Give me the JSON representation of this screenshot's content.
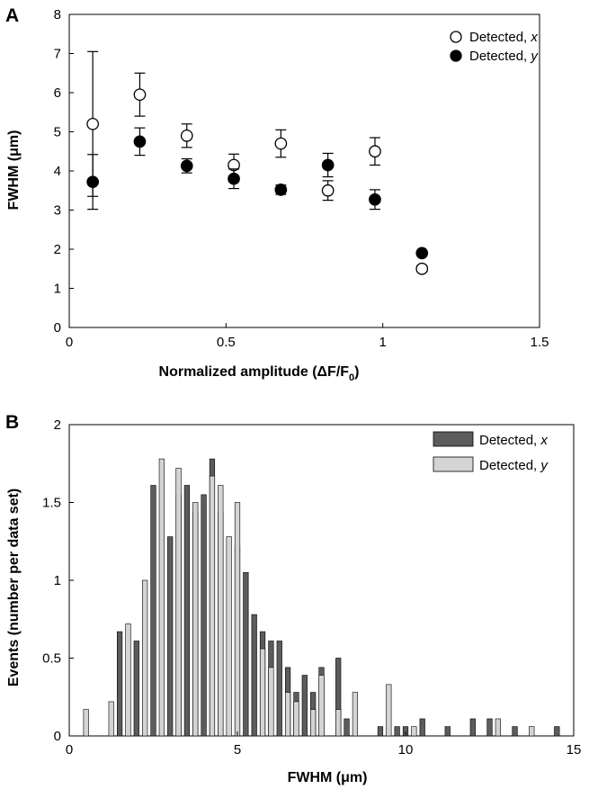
{
  "chart_data": [
    {
      "panel": "A",
      "type": "scatter",
      "xlabel": "Normalized amplitude (ΔF/F0)",
      "xlabel_main": "Normalized amplitude (ΔF/F",
      "xlabel_sub": "0",
      "xlabel_close": ")",
      "ylabel": "FWHM (μm)",
      "xlim": [
        0,
        1.5
      ],
      "ylim": [
        0,
        8
      ],
      "xticks": [
        "0",
        "0.5",
        "1",
        "1.5"
      ],
      "yticks": [
        "0",
        "1",
        "2",
        "3",
        "4",
        "5",
        "6",
        "7",
        "8"
      ],
      "grid": false,
      "legend_position": "top-right",
      "series": [
        {
          "name": "Detected, x",
          "name_main": "Detected, ",
          "name_var": "x",
          "marker": "open-circle",
          "x": [
            0.075,
            0.225,
            0.375,
            0.525,
            0.675,
            0.825,
            0.975,
            1.125
          ],
          "y": [
            5.2,
            5.95,
            4.9,
            4.15,
            4.7,
            3.5,
            4.5,
            1.5
          ],
          "error": [
            1.85,
            0.55,
            0.3,
            0.28,
            0.35,
            0.25,
            0.35,
            0.08
          ]
        },
        {
          "name": "Detected, y",
          "name_main": "Detected, ",
          "name_var": "y",
          "marker": "filled-circle",
          "x": [
            0.075,
            0.225,
            0.375,
            0.525,
            0.675,
            0.825,
            0.975,
            1.125
          ],
          "y": [
            3.72,
            4.75,
            4.13,
            3.8,
            3.52,
            4.15,
            3.27,
            1.9
          ],
          "error": [
            0.7,
            0.35,
            0.18,
            0.25,
            0.12,
            0.3,
            0.25,
            0.05
          ]
        }
      ]
    },
    {
      "panel": "B",
      "type": "bar",
      "xlabel": "FWHM (μm)",
      "ylabel": "Events (number per data set)",
      "xlim": [
        0,
        15
      ],
      "ylim": [
        0,
        2
      ],
      "xticks": [
        "0",
        "5",
        "10",
        "15"
      ],
      "yticks": [
        "0",
        "0.5",
        "1",
        "1.5",
        "2"
      ],
      "grid": false,
      "legend_position": "top-right",
      "bin_width": 0.25,
      "series": [
        {
          "name": "Detected, x",
          "name_main": "Detected, ",
          "name_var": "x",
          "color": "#5c5c5c",
          "points": [
            [
              1.5,
              0.67
            ],
            [
              2.0,
              0.61
            ],
            [
              2.5,
              1.61
            ],
            [
              3.0,
              1.28
            ],
            [
              3.25,
              1.55
            ],
            [
              3.5,
              1.61
            ],
            [
              3.75,
              1.44
            ],
            [
              4.0,
              1.55
            ],
            [
              4.25,
              1.78
            ],
            [
              4.5,
              1.44
            ],
            [
              5.0,
              1.22
            ],
            [
              5.25,
              1.05
            ],
            [
              5.5,
              0.78
            ],
            [
              5.75,
              0.67
            ],
            [
              6.0,
              0.61
            ],
            [
              6.25,
              0.61
            ],
            [
              6.5,
              0.44
            ],
            [
              6.75,
              0.28
            ],
            [
              7.0,
              0.39
            ],
            [
              7.25,
              0.28
            ],
            [
              7.5,
              0.44
            ],
            [
              8.0,
              0.5
            ],
            [
              8.25,
              0.11
            ],
            [
              9.25,
              0.06
            ],
            [
              9.75,
              0.06
            ],
            [
              10.0,
              0.06
            ],
            [
              10.5,
              0.11
            ],
            [
              11.25,
              0.06
            ],
            [
              12.0,
              0.11
            ],
            [
              12.5,
              0.11
            ],
            [
              13.25,
              0.06
            ],
            [
              14.5,
              0.06
            ]
          ]
        },
        {
          "name": "Detected, y",
          "name_main": "Detected, ",
          "name_var": "y",
          "color": "#d4d4d4",
          "points": [
            [
              0.5,
              0.17
            ],
            [
              1.25,
              0.22
            ],
            [
              1.75,
              0.72
            ],
            [
              2.25,
              1.0
            ],
            [
              2.75,
              1.78
            ],
            [
              3.25,
              1.72
            ],
            [
              3.75,
              1.5
            ],
            [
              4.25,
              1.67
            ],
            [
              4.5,
              1.61
            ],
            [
              4.75,
              1.28
            ],
            [
              5.0,
              1.5
            ],
            [
              5.75,
              0.56
            ],
            [
              6.0,
              0.44
            ],
            [
              6.5,
              0.28
            ],
            [
              6.75,
              0.22
            ],
            [
              7.25,
              0.17
            ],
            [
              7.5,
              0.39
            ],
            [
              8.0,
              0.17
            ],
            [
              8.5,
              0.28
            ],
            [
              9.5,
              0.33
            ],
            [
              10.25,
              0.06
            ],
            [
              12.75,
              0.11
            ],
            [
              13.75,
              0.06
            ]
          ]
        }
      ]
    }
  ],
  "icons": {
    "open_marker": "open-circle-marker-icon",
    "filled_marker": "filled-circle-marker-icon"
  }
}
